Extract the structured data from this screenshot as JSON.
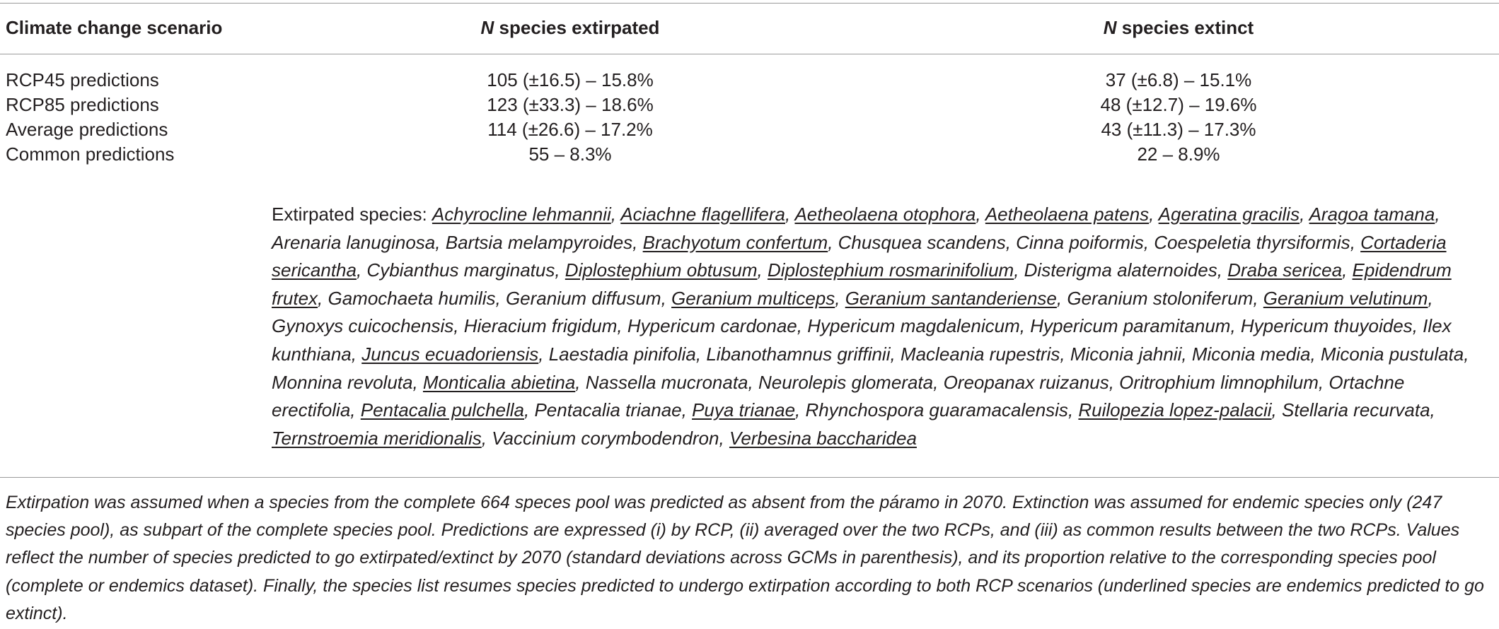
{
  "header": {
    "scenario": "Climate change scenario",
    "extirpated_n": "N",
    "extirpated_rest": " species extirpated",
    "extinct_n": "N",
    "extinct_rest": " species extinct"
  },
  "rows": [
    {
      "label": "RCP45 predictions",
      "extirpated": "105 (±16.5) – 15.8%",
      "extinct": "37 (±6.8) – 15.1%"
    },
    {
      "label": "RCP85 predictions",
      "extirpated": "123 (±33.3) – 18.6%",
      "extinct": "48 (±12.7) – 19.6%"
    },
    {
      "label": "Average predictions",
      "extirpated": "114 (±26.6) – 17.2%",
      "extinct": "43 (±11.3) – 17.3%"
    },
    {
      "label": "Common predictions",
      "extirpated": "55 – 8.3%",
      "extinct": "22 – 8.9%"
    }
  ],
  "species_lead": "Extirpated species: ",
  "species": [
    {
      "name": "Achyrocline lehmannii",
      "endemic": true
    },
    {
      "name": "Aciachne flagellifera",
      "endemic": true
    },
    {
      "name": "Aetheolaena otophora",
      "endemic": true
    },
    {
      "name": "Aetheolaena patens",
      "endemic": true
    },
    {
      "name": "Ageratina gracilis",
      "endemic": true
    },
    {
      "name": "Aragoa tamana",
      "endemic": true
    },
    {
      "name": "Arenaria lanuginosa",
      "endemic": false
    },
    {
      "name": "Bartsia melampyroides",
      "endemic": false
    },
    {
      "name": "Brachyotum confertum",
      "endemic": true
    },
    {
      "name": "Chusquea scandens",
      "endemic": false
    },
    {
      "name": "Cinna poiformis",
      "endemic": false
    },
    {
      "name": "Coespeletia thyrsiformis",
      "endemic": false
    },
    {
      "name": "Cortaderia sericantha",
      "endemic": true
    },
    {
      "name": "Cybianthus marginatus",
      "endemic": false
    },
    {
      "name": "Diplostephium obtusum",
      "endemic": true
    },
    {
      "name": "Diplostephium rosmarinifolium",
      "endemic": true
    },
    {
      "name": "Disterigma alaternoides",
      "endemic": false
    },
    {
      "name": "Draba sericea",
      "endemic": true
    },
    {
      "name": "Epidendrum frutex",
      "endemic": true
    },
    {
      "name": "Gamochaeta humilis",
      "endemic": false
    },
    {
      "name": "Geranium diffusum",
      "endemic": false
    },
    {
      "name": "Geranium multiceps",
      "endemic": true
    },
    {
      "name": "Geranium santanderiense",
      "endemic": true
    },
    {
      "name": "Geranium stoloniferum",
      "endemic": false
    },
    {
      "name": "Geranium velutinum",
      "endemic": true
    },
    {
      "name": "Gynoxys cuicochensis",
      "endemic": false
    },
    {
      "name": "Hieracium frigidum",
      "endemic": false
    },
    {
      "name": "Hypericum cardonae",
      "endemic": false
    },
    {
      "name": "Hypericum magdalenicum",
      "endemic": false
    },
    {
      "name": "Hypericum paramitanum",
      "endemic": false
    },
    {
      "name": "Hypericum thuyoides",
      "endemic": false
    },
    {
      "name": "Ilex kunthiana",
      "endemic": false
    },
    {
      "name": "Juncus ecuadoriensis",
      "endemic": true
    },
    {
      "name": "Laestadia pinifolia",
      "endemic": false
    },
    {
      "name": "Libanothamnus griffinii",
      "endemic": false
    },
    {
      "name": "Macleania rupestris",
      "endemic": false
    },
    {
      "name": "Miconia jahnii",
      "endemic": false
    },
    {
      "name": "Miconia media",
      "endemic": false
    },
    {
      "name": "Miconia pustulata",
      "endemic": false
    },
    {
      "name": "Monnina revoluta",
      "endemic": false
    },
    {
      "name": "Monticalia abietina",
      "endemic": true
    },
    {
      "name": "Nassella mucronata",
      "endemic": false
    },
    {
      "name": "Neurolepis glomerata",
      "endemic": false
    },
    {
      "name": "Oreopanax ruizanus",
      "endemic": false
    },
    {
      "name": "Oritrophium limnophilum",
      "endemic": false
    },
    {
      "name": "Ortachne erectifolia",
      "endemic": false
    },
    {
      "name": "Pentacalia pulchella",
      "endemic": true
    },
    {
      "name": "Pentacalia trianae",
      "endemic": false
    },
    {
      "name": "Puya trianae",
      "endemic": true
    },
    {
      "name": "Rhynchospora guaramacalensis",
      "endemic": false
    },
    {
      "name": "Ruilopezia lopez-palacii",
      "endemic": true
    },
    {
      "name": "Stellaria recurvata",
      "endemic": false
    },
    {
      "name": "Ternstroemia meridionalis",
      "endemic": true
    },
    {
      "name": "Vaccinium corymbodendron",
      "endemic": false
    },
    {
      "name": "Verbesina baccharidea",
      "endemic": true
    }
  ],
  "footnote": "Extirpation was assumed when a species from the complete 664 speces pool was predicted as absent from the páramo in 2070. Extinction was assumed for endemic species only (247 species pool), as subpart of the complete species pool. Predictions are expressed (i) by RCP, (ii) averaged over the two RCPs, and (iii) as common results between the two RCPs. Values reflect the number of species predicted to go extirpated/extinct by 2070 (standard deviations across GCMs in parenthesis), and its proportion relative to the corresponding species pool (complete or endemics dataset). Finally, the species list resumes species predicted to undergo extirpation according to both RCP scenarios (underlined species are endemics predicted to go extinct)."
}
